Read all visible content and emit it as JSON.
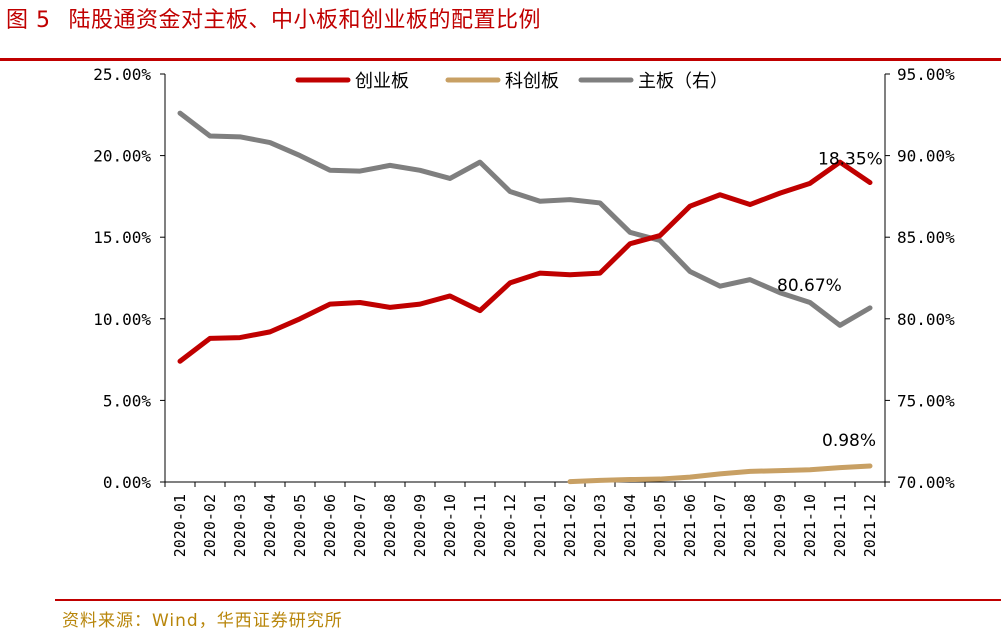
{
  "header": {
    "figure_label": "图 5",
    "title": "陆股通资金对主板、中小板和创业板的配置比例"
  },
  "footer": {
    "source": "资料来源：Wind，华西证券研究所"
  },
  "chart_data": {
    "type": "line",
    "categories": [
      "2020-01",
      "2020-02",
      "2020-03",
      "2020-04",
      "2020-05",
      "2020-06",
      "2020-07",
      "2020-08",
      "2020-09",
      "2020-10",
      "2020-11",
      "2020-12",
      "2021-01",
      "2021-02",
      "2021-03",
      "2021-04",
      "2021-05",
      "2021-06",
      "2021-07",
      "2021-08",
      "2021-09",
      "2021-10",
      "2021-11",
      "2021-12"
    ],
    "y_left": {
      "ylim": [
        0,
        25
      ],
      "ticks": [
        "0.00%",
        "5.00%",
        "10.00%",
        "15.00%",
        "20.00%",
        "25.00%"
      ]
    },
    "y_right": {
      "ylim": [
        70,
        95
      ],
      "ticks": [
        "70.00%",
        "75.00%",
        "80.00%",
        "85.00%",
        "90.00%",
        "95.00%"
      ]
    },
    "grid": false,
    "legend_position": "top",
    "series": [
      {
        "name": "创业板",
        "axis": "left",
        "color": "#c00000",
        "values": [
          7.4,
          8.8,
          8.85,
          9.2,
          10.0,
          10.9,
          11.0,
          10.7,
          10.9,
          11.4,
          10.5,
          12.2,
          12.8,
          12.7,
          12.8,
          14.6,
          15.1,
          16.9,
          17.6,
          17.0,
          17.7,
          18.3,
          19.6,
          18.35
        ]
      },
      {
        "name": "科创板",
        "axis": "left",
        "color": "#c8a064",
        "values": [
          null,
          null,
          null,
          null,
          null,
          null,
          null,
          null,
          null,
          null,
          null,
          null,
          null,
          0.02,
          0.1,
          0.15,
          0.18,
          0.3,
          0.5,
          0.65,
          0.7,
          0.75,
          0.88,
          0.98
        ]
      },
      {
        "name": "主板（右）",
        "axis": "right",
        "color": "#7f7f7f",
        "values": [
          92.6,
          91.2,
          91.15,
          90.8,
          90.0,
          89.1,
          89.05,
          89.4,
          89.1,
          88.6,
          89.6,
          87.8,
          87.2,
          87.3,
          87.1,
          85.3,
          84.8,
          82.9,
          82.0,
          82.4,
          81.6,
          81.0,
          79.6,
          80.67
        ]
      }
    ],
    "annotations": [
      {
        "series": "创业板",
        "index": 23,
        "text": "18.35%"
      },
      {
        "series": "主板（右）",
        "index": 23,
        "text": "80.67%"
      },
      {
        "series": "科创板",
        "index": 23,
        "text": "0.98%"
      }
    ]
  }
}
